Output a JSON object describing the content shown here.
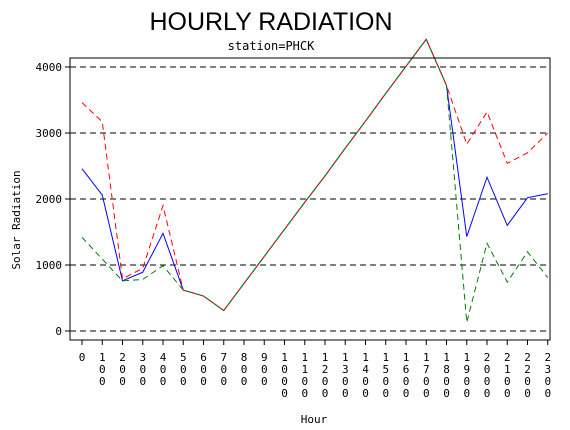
{
  "chart_data": {
    "type": "line",
    "title": "HOURLY RADIATION",
    "subtitle": "station=PHCK",
    "xlabel": "Hour",
    "ylabel": "Solar Radiation",
    "ylim": [
      0,
      4000
    ],
    "yticks": [
      0,
      1000,
      2000,
      3000,
      4000
    ],
    "grid": "horizontal-dashed",
    "x_ticks": [
      "0",
      "100",
      "200",
      "300",
      "400",
      "500",
      "600",
      "700",
      "800",
      "900",
      "1000",
      "1100",
      "1200",
      "1300",
      "1400",
      "1500",
      "1600",
      "1700",
      "1800",
      "1900",
      "2000",
      "2100",
      "2200",
      "2300"
    ],
    "x": [
      0,
      100,
      200,
      300,
      400,
      500,
      600,
      700,
      800,
      900,
      1000,
      1100,
      1200,
      1300,
      1400,
      1500,
      1600,
      1700,
      1800,
      1900,
      2000,
      2100,
      2200,
      2300
    ],
    "series": [
      {
        "color": "#0000ff",
        "dash": "solid",
        "values": [
          2460,
          2060,
          760,
          890,
          1480,
          620,
          530,
          310,
          720,
          1130,
          1540,
          1950,
          2350,
          2770,
          3180,
          3600,
          4010,
          4420,
          3720,
          1430,
          2330,
          1600,
          2020,
          2080
        ]
      },
      {
        "color": "#ff0000",
        "dash": "dashed",
        "values": [
          3460,
          3170,
          790,
          950,
          1900,
          620,
          530,
          310,
          720,
          1130,
          1540,
          1950,
          2350,
          2770,
          3180,
          3600,
          4010,
          4420,
          3720,
          2830,
          3320,
          2540,
          2700,
          3000
        ]
      },
      {
        "color": "#008000",
        "dash": "dashed",
        "values": [
          1420,
          1090,
          760,
          780,
          990,
          620,
          530,
          310,
          720,
          1130,
          1540,
          1950,
          2350,
          2770,
          3180,
          3600,
          4010,
          4420,
          3720,
          130,
          1330,
          740,
          1200,
          810
        ]
      }
    ]
  }
}
